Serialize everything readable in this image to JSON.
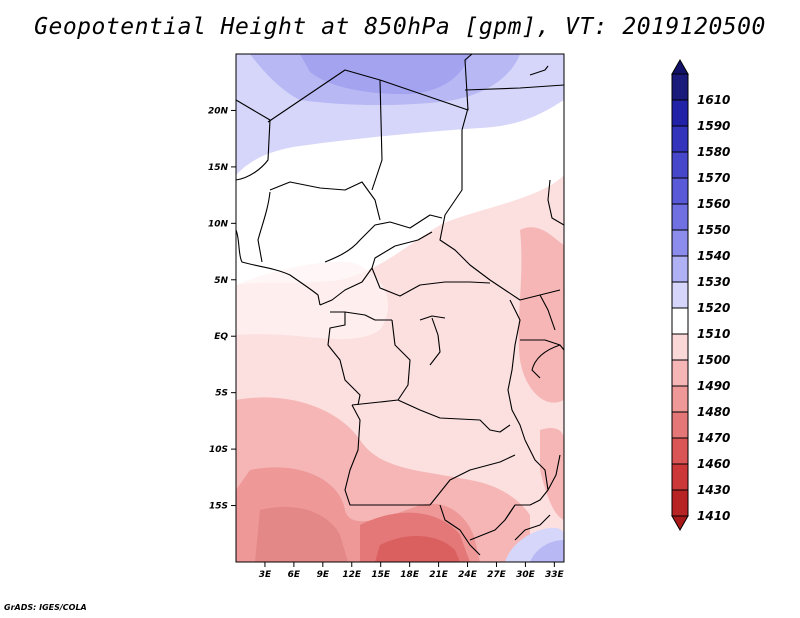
{
  "title": "Geopotential Height at 850hPa [gpm], VT: 2019120500",
  "footer": "GrADS: IGES/COLA",
  "map": {
    "lon_range": [
      0,
      34
    ],
    "lat_range": [
      -20,
      25
    ],
    "lat_ticks": [
      {
        "value": 20,
        "label": "20N"
      },
      {
        "value": 15,
        "label": "15N"
      },
      {
        "value": 10,
        "label": "10N"
      },
      {
        "value": 5,
        "label": "5N"
      },
      {
        "value": 0,
        "label": "EQ"
      },
      {
        "value": -5,
        "label": "5S"
      },
      {
        "value": -10,
        "label": "10S"
      },
      {
        "value": -15,
        "label": "15S"
      }
    ],
    "lon_ticks": [
      {
        "value": 3,
        "label": "3E"
      },
      {
        "value": 6,
        "label": "6E"
      },
      {
        "value": 9,
        "label": "9E"
      },
      {
        "value": 12,
        "label": "12E"
      },
      {
        "value": 15,
        "label": "15E"
      },
      {
        "value": 18,
        "label": "18E"
      },
      {
        "value": 21,
        "label": "21E"
      },
      {
        "value": 24,
        "label": "24E"
      },
      {
        "value": 27,
        "label": "27E"
      },
      {
        "value": 30,
        "label": "30E"
      },
      {
        "value": 33,
        "label": "33E"
      }
    ]
  },
  "colorbar": {
    "levels": [
      {
        "label": "1610",
        "color": "#1a1a7a"
      },
      {
        "label": "1590",
        "color": "#2222a8"
      },
      {
        "label": "1580",
        "color": "#3333bb"
      },
      {
        "label": "1570",
        "color": "#4747cc"
      },
      {
        "label": "1560",
        "color": "#5a5ad8"
      },
      {
        "label": "1550",
        "color": "#7070e2"
      },
      {
        "label": "1540",
        "color": "#8c8cec"
      },
      {
        "label": "1530",
        "color": "#b0b0f4"
      },
      {
        "label": "1520",
        "color": "#d6d6fa"
      },
      {
        "label": "1510",
        "color": "#ffffff"
      },
      {
        "label": "1500",
        "color": "#fbd8d8"
      },
      {
        "label": "1490",
        "color": "#f6b6b6"
      },
      {
        "label": "1480",
        "color": "#ee9898"
      },
      {
        "label": "1470",
        "color": "#e47777"
      },
      {
        "label": "1460",
        "color": "#da5555"
      },
      {
        "label": "1430",
        "color": "#cc3838"
      },
      {
        "label": "1410",
        "color": "#b82424"
      }
    ],
    "top_cap_color": "#12126a",
    "bottom_cap_color": "#a81818"
  }
}
